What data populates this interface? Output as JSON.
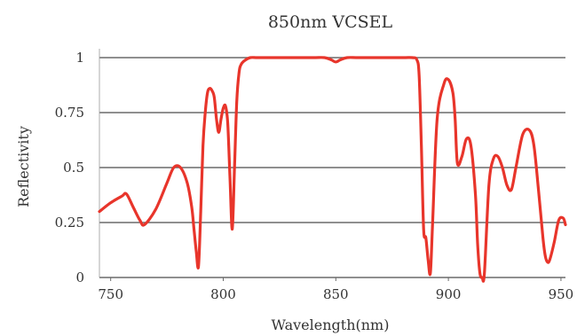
{
  "chart_data": {
    "type": "line",
    "title": "850nm VCSEL",
    "xlabel": "Wavelength(nm)",
    "ylabel": "Reflectivity",
    "xlim": [
      745,
      952
    ],
    "ylim": [
      0,
      1
    ],
    "grid": "horizontal",
    "x_ticks": [
      750,
      800,
      850,
      900,
      950
    ],
    "x_tick_labels": [
      "750",
      "800",
      "850",
      "900",
      "950"
    ],
    "y_ticks": [
      0,
      0.25,
      0.5,
      0.75,
      1
    ],
    "y_tick_labels": [
      "0",
      "0.25",
      "0.5",
      "0.75",
      "1"
    ],
    "colors": {
      "series": "#e8352b",
      "grid": "#6a6a6a",
      "text": "#333333"
    },
    "series": [
      {
        "color": "#e8352b",
        "x": [
          745,
          750,
          755,
          757,
          760,
          763,
          765,
          770,
          775,
          778,
          781,
          784,
          786,
          787,
          788,
          789,
          790,
          791,
          792,
          793,
          794,
          795,
          796,
          797,
          798,
          799,
          800,
          801,
          802,
          803,
          804,
          805,
          806,
          807,
          808,
          810,
          812,
          815,
          820,
          830,
          840,
          845,
          848,
          850,
          852,
          855,
          860,
          870,
          880,
          884,
          886,
          887,
          888,
          889,
          890,
          891,
          892,
          893,
          895,
          898,
          900,
          902,
          903,
          904,
          906,
          908,
          910,
          912,
          913,
          914,
          915,
          916,
          918,
          920,
          922,
          924,
          926,
          928,
          930,
          933,
          936,
          938,
          940,
          942,
          943,
          944,
          945,
          947,
          949,
          951,
          952
        ],
        "y": [
          0.3,
          0.34,
          0.37,
          0.38,
          0.32,
          0.26,
          0.24,
          0.31,
          0.43,
          0.5,
          0.5,
          0.43,
          0.32,
          0.22,
          0.12,
          0.05,
          0.3,
          0.6,
          0.75,
          0.84,
          0.86,
          0.85,
          0.82,
          0.72,
          0.66,
          0.72,
          0.77,
          0.78,
          0.7,
          0.45,
          0.22,
          0.5,
          0.8,
          0.93,
          0.97,
          0.99,
          1.0,
          1.0,
          1.0,
          1.0,
          1.0,
          1.0,
          0.99,
          0.98,
          0.99,
          1.0,
          1.0,
          1.0,
          1.0,
          1.0,
          0.99,
          0.92,
          0.6,
          0.22,
          0.18,
          0.08,
          0.02,
          0.25,
          0.72,
          0.88,
          0.9,
          0.84,
          0.72,
          0.52,
          0.55,
          0.63,
          0.6,
          0.38,
          0.15,
          0.02,
          0.0,
          0.02,
          0.42,
          0.54,
          0.55,
          0.5,
          0.42,
          0.4,
          0.5,
          0.65,
          0.67,
          0.6,
          0.4,
          0.18,
          0.1,
          0.07,
          0.08,
          0.16,
          0.26,
          0.27,
          0.24
        ]
      }
    ]
  }
}
